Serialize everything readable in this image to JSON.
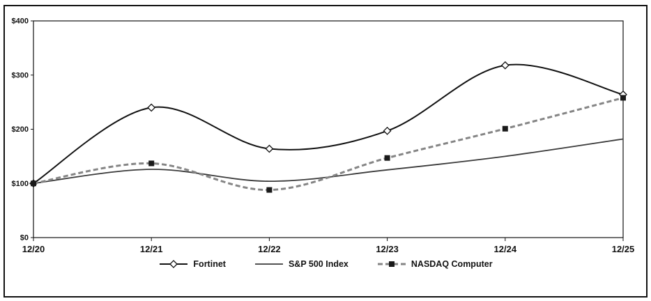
{
  "figure": {
    "background": "#ffffff",
    "border_color": "#111111"
  },
  "chart_data": {
    "type": "line",
    "title": "",
    "xlabel": "",
    "ylabel": "",
    "x": [
      "12/20",
      "12/21",
      "12/22",
      "12/23",
      "12/24",
      "12/25"
    ],
    "series": [
      {
        "name": "Fortinet",
        "values": [
          100,
          240,
          164,
          197,
          318,
          264
        ],
        "color": "#111111",
        "width": 2,
        "dash": "none",
        "marker": "diamond-open",
        "smooth": true
      },
      {
        "name": "S&P 500 Index",
        "values": [
          100,
          126,
          104,
          125,
          150,
          182
        ],
        "color": "#3a3a3a",
        "width": 1.8,
        "dash": "none",
        "marker": "none",
        "smooth": true
      },
      {
        "name": "NASDAQ Computer",
        "values": [
          100,
          137,
          88,
          147,
          201,
          258
        ],
        "color": "#858585",
        "width": 3,
        "dash": "7 4",
        "marker": "square-filled",
        "smooth": true
      }
    ],
    "ylim": [
      0,
      400
    ],
    "yticks": [
      "$0",
      "$100",
      "$200",
      "$300",
      "$400"
    ],
    "ytick_values": [
      0,
      100,
      200,
      300,
      400
    ],
    "grid": false,
    "legend_position": "bottom"
  }
}
